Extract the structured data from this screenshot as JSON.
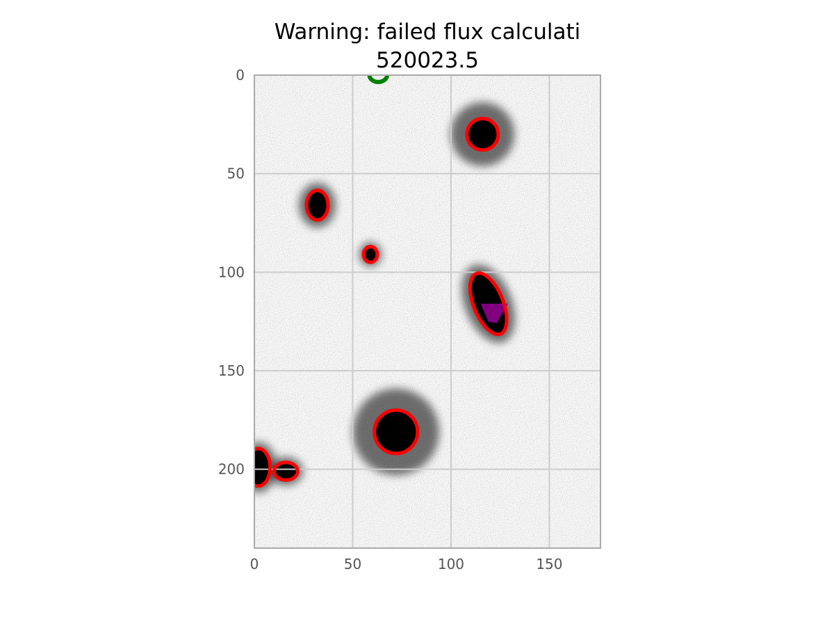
{
  "chart_data": {
    "type": "image",
    "title": "Warning: failed flux calculati",
    "subtitle": "520023.5",
    "xlabel": "",
    "ylabel": "",
    "xlim": [
      0,
      176
    ],
    "ylim": [
      240,
      0
    ],
    "xticks": [
      0,
      50,
      100,
      150
    ],
    "yticks": [
      0,
      50,
      100,
      150,
      200
    ],
    "grid": true,
    "colors": {
      "aperture": "#ff0000",
      "target": "#008000",
      "masked": "#800080",
      "grid": "#cccccc",
      "frame": "#aaaaaa"
    },
    "sources": [
      {
        "x": 116,
        "y": 30,
        "rx": 8,
        "ry": 8,
        "angle": 0,
        "glow": 15
      },
      {
        "x": 32,
        "y": 66,
        "rx": 5.5,
        "ry": 7.5,
        "angle": 0,
        "glow": 7
      },
      {
        "x": 59,
        "y": 91,
        "rx": 3.5,
        "ry": 4,
        "angle": 0,
        "glow": 4
      },
      {
        "x": 119,
        "y": 116,
        "rx": 7.5,
        "ry": 16.5,
        "angle": -22,
        "glow": 8
      },
      {
        "x": 72,
        "y": 181,
        "rx": 11,
        "ry": 11,
        "angle": 0,
        "glow": 20
      },
      {
        "x": 2,
        "y": 199,
        "rx": 6,
        "ry": 9.5,
        "angle": 0,
        "glow": 6
      },
      {
        "x": 16,
        "y": 201,
        "rx": 6,
        "ry": 4.5,
        "angle": 0,
        "glow": 5
      }
    ],
    "target_aperture": {
      "x": 63,
      "y": 0,
      "rx": 4.5,
      "ry": 3.5
    },
    "masked_region": {
      "x": 119,
      "y": 116
    }
  }
}
